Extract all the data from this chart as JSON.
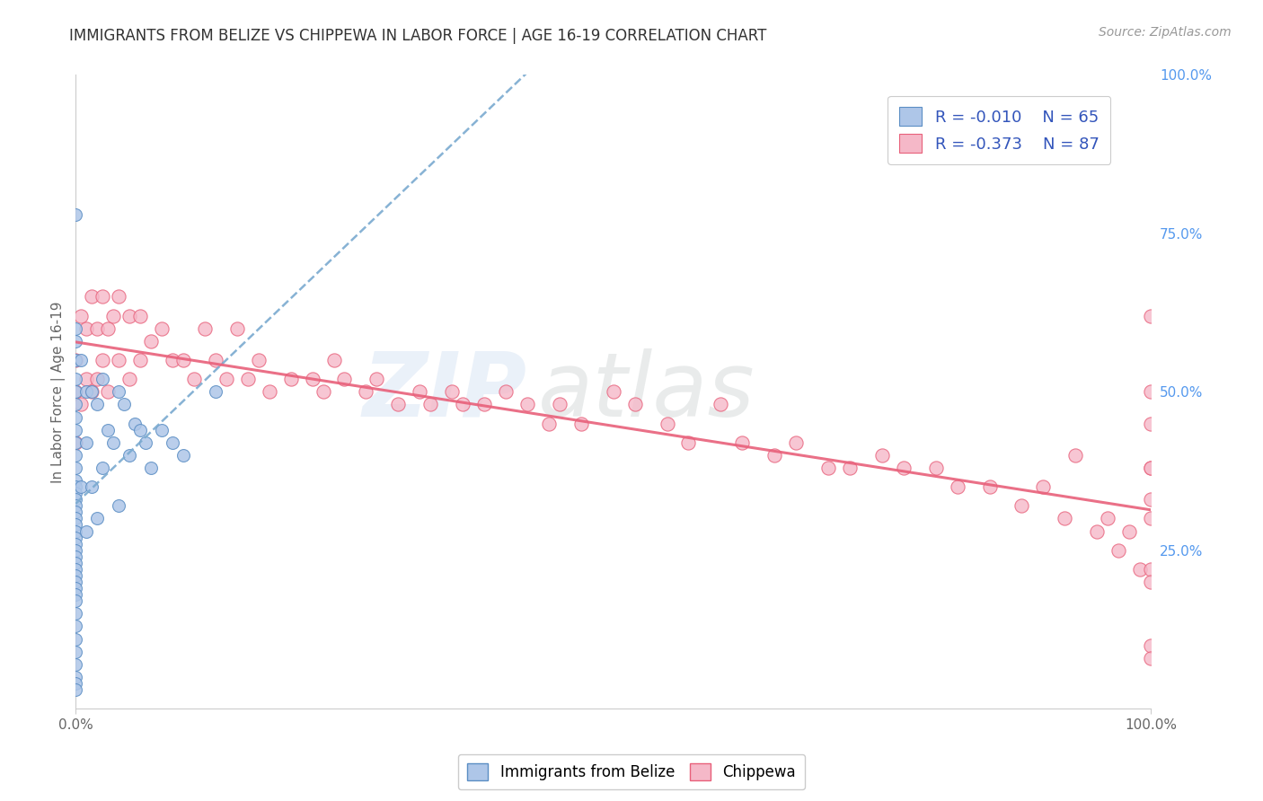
{
  "title": "IMMIGRANTS FROM BELIZE VS CHIPPEWA IN LABOR FORCE | AGE 16-19 CORRELATION CHART",
  "source": "Source: ZipAtlas.com",
  "ylabel": "In Labor Force | Age 16-19",
  "watermark_zip": "ZIP",
  "watermark_atlas": "atlas",
  "belize_R": "-0.010",
  "belize_N": "65",
  "chippewa_R": "-0.373",
  "chippewa_N": "87",
  "belize_color": "#aec6e8",
  "chippewa_color": "#f5b8c8",
  "belize_edge_color": "#5b8ec4",
  "chippewa_edge_color": "#e8607a",
  "belize_line_color": "#7aaad0",
  "chippewa_line_color": "#e8607a",
  "background_color": "#ffffff",
  "grid_color": "#d8d8d8",
  "title_color": "#333333",
  "right_axis_color": "#5599ee",
  "legend_color": "#3355bb",
  "belize_x": [
    0.0,
    0.0,
    0.0,
    0.0,
    0.0,
    0.0,
    0.0,
    0.0,
    0.0,
    0.0,
    0.0,
    0.0,
    0.0,
    0.0,
    0.0,
    0.0,
    0.0,
    0.0,
    0.0,
    0.0,
    0.0,
    0.0,
    0.0,
    0.0,
    0.0,
    0.0,
    0.0,
    0.0,
    0.0,
    0.0,
    0.0,
    0.0,
    0.0,
    0.0,
    0.0,
    0.0,
    0.0,
    0.0,
    0.0,
    0.0,
    0.005,
    0.005,
    0.01,
    0.01,
    0.01,
    0.015,
    0.015,
    0.02,
    0.02,
    0.025,
    0.025,
    0.03,
    0.035,
    0.04,
    0.04,
    0.045,
    0.05,
    0.055,
    0.06,
    0.065,
    0.07,
    0.08,
    0.09,
    0.1,
    0.13
  ],
  "belize_y": [
    0.78,
    0.6,
    0.58,
    0.55,
    0.52,
    0.5,
    0.48,
    0.46,
    0.44,
    0.42,
    0.4,
    0.38,
    0.36,
    0.35,
    0.34,
    0.33,
    0.32,
    0.31,
    0.3,
    0.29,
    0.28,
    0.27,
    0.26,
    0.25,
    0.24,
    0.23,
    0.22,
    0.21,
    0.2,
    0.19,
    0.18,
    0.17,
    0.15,
    0.13,
    0.11,
    0.09,
    0.07,
    0.05,
    0.04,
    0.03,
    0.55,
    0.35,
    0.5,
    0.42,
    0.28,
    0.5,
    0.35,
    0.48,
    0.3,
    0.52,
    0.38,
    0.44,
    0.42,
    0.5,
    0.32,
    0.48,
    0.4,
    0.45,
    0.44,
    0.42,
    0.38,
    0.44,
    0.42,
    0.4,
    0.5
  ],
  "chippewa_x": [
    0.0,
    0.0,
    0.0,
    0.005,
    0.005,
    0.01,
    0.01,
    0.015,
    0.015,
    0.02,
    0.02,
    0.025,
    0.025,
    0.03,
    0.03,
    0.035,
    0.04,
    0.04,
    0.05,
    0.05,
    0.06,
    0.06,
    0.07,
    0.08,
    0.09,
    0.1,
    0.11,
    0.12,
    0.13,
    0.14,
    0.15,
    0.16,
    0.17,
    0.18,
    0.2,
    0.22,
    0.23,
    0.24,
    0.25,
    0.27,
    0.28,
    0.3,
    0.32,
    0.33,
    0.35,
    0.36,
    0.38,
    0.4,
    0.42,
    0.44,
    0.45,
    0.47,
    0.5,
    0.52,
    0.55,
    0.57,
    0.6,
    0.62,
    0.65,
    0.67,
    0.7,
    0.72,
    0.75,
    0.77,
    0.8,
    0.82,
    0.85,
    0.88,
    0.9,
    0.92,
    0.93,
    0.95,
    0.96,
    0.97,
    0.98,
    0.99,
    1.0,
    1.0,
    1.0,
    1.0,
    1.0,
    1.0,
    1.0,
    1.0,
    1.0,
    1.0,
    1.0
  ],
  "chippewa_y": [
    0.55,
    0.5,
    0.42,
    0.62,
    0.48,
    0.6,
    0.52,
    0.65,
    0.5,
    0.6,
    0.52,
    0.65,
    0.55,
    0.6,
    0.5,
    0.62,
    0.65,
    0.55,
    0.62,
    0.52,
    0.62,
    0.55,
    0.58,
    0.6,
    0.55,
    0.55,
    0.52,
    0.6,
    0.55,
    0.52,
    0.6,
    0.52,
    0.55,
    0.5,
    0.52,
    0.52,
    0.5,
    0.55,
    0.52,
    0.5,
    0.52,
    0.48,
    0.5,
    0.48,
    0.5,
    0.48,
    0.48,
    0.5,
    0.48,
    0.45,
    0.48,
    0.45,
    0.5,
    0.48,
    0.45,
    0.42,
    0.48,
    0.42,
    0.4,
    0.42,
    0.38,
    0.38,
    0.4,
    0.38,
    0.38,
    0.35,
    0.35,
    0.32,
    0.35,
    0.3,
    0.4,
    0.28,
    0.3,
    0.25,
    0.28,
    0.22,
    0.38,
    0.33,
    0.22,
    0.1,
    0.62,
    0.5,
    0.45,
    0.38,
    0.3,
    0.2,
    0.08
  ],
  "xlim": [
    0.0,
    1.0
  ],
  "ylim": [
    0.0,
    1.0
  ],
  "xtick_vals": [
    0.0,
    1.0
  ],
  "xtick_labels": [
    "0.0%",
    "100.0%"
  ],
  "ytick_right_vals": [
    0.25,
    0.5,
    0.75,
    1.0
  ],
  "ytick_right_labels": [
    "25.0%",
    "50.0%",
    "75.0%",
    "100.0%"
  ]
}
